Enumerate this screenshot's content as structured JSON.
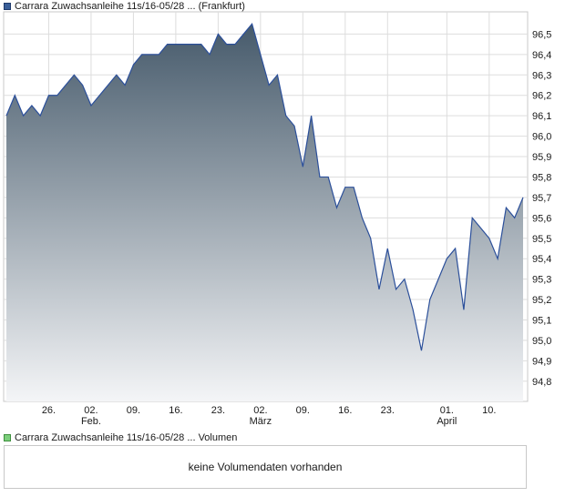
{
  "chart_data": {
    "type": "area",
    "legend": "Carrara Zuwachsanleihe 11s/16-05/28 ... (Frankfurt)",
    "ylim": [
      94.75,
      96.6
    ],
    "y_ticks": [
      "96,5",
      "96,4",
      "96,3",
      "96,2",
      "96,1",
      "96,0",
      "95,9",
      "95,8",
      "95,7",
      "95,6",
      "95,5",
      "95,4",
      "95,3",
      "95,2",
      "95,1",
      "95,0",
      "94,9",
      "94,8"
    ],
    "y_tick_values": [
      96.5,
      96.4,
      96.3,
      96.2,
      96.1,
      96.0,
      95.9,
      95.8,
      95.7,
      95.6,
      95.5,
      95.4,
      95.3,
      95.2,
      95.1,
      95.0,
      94.9,
      94.8
    ],
    "x_ticks": [
      {
        "day": "26.",
        "month": "",
        "index": 5
      },
      {
        "day": "02.",
        "month": "Feb.",
        "index": 10
      },
      {
        "day": "09.",
        "month": "",
        "index": 15
      },
      {
        "day": "16.",
        "month": "",
        "index": 20
      },
      {
        "day": "23.",
        "month": "",
        "index": 25
      },
      {
        "day": "02.",
        "month": "März",
        "index": 30
      },
      {
        "day": "09.",
        "month": "",
        "index": 35
      },
      {
        "day": "16.",
        "month": "",
        "index": 40
      },
      {
        "day": "23.",
        "month": "",
        "index": 45
      },
      {
        "day": "01.",
        "month": "April",
        "index": 52
      },
      {
        "day": "10.",
        "month": "",
        "index": 57
      }
    ],
    "values": [
      96.1,
      96.2,
      96.1,
      96.15,
      96.1,
      96.2,
      96.2,
      96.25,
      96.3,
      96.25,
      96.15,
      96.2,
      96.25,
      96.3,
      96.25,
      96.35,
      96.4,
      96.4,
      96.4,
      96.45,
      96.45,
      96.45,
      96.45,
      96.45,
      96.4,
      96.5,
      96.45,
      96.45,
      96.5,
      96.55,
      96.4,
      96.25,
      96.3,
      96.1,
      96.05,
      95.85,
      96.1,
      95.8,
      95.8,
      95.65,
      95.75,
      95.75,
      95.6,
      95.5,
      95.25,
      95.45,
      95.25,
      95.3,
      95.15,
      94.95,
      95.2,
      95.3,
      95.4,
      95.45,
      95.15,
      95.6,
      95.55,
      95.5,
      95.4,
      95.65,
      95.6,
      95.7
    ],
    "grid": true,
    "colors": {
      "line": "#2b4f9a",
      "fill_top": "#465a6b",
      "fill_bottom": "#f4f5f7",
      "grid": "#dddddd"
    }
  },
  "volume": {
    "legend": "Carrara Zuwachsanleihe 11s/16-05/28 ... Volumen",
    "message": "keine Volumendaten vorhanden"
  }
}
